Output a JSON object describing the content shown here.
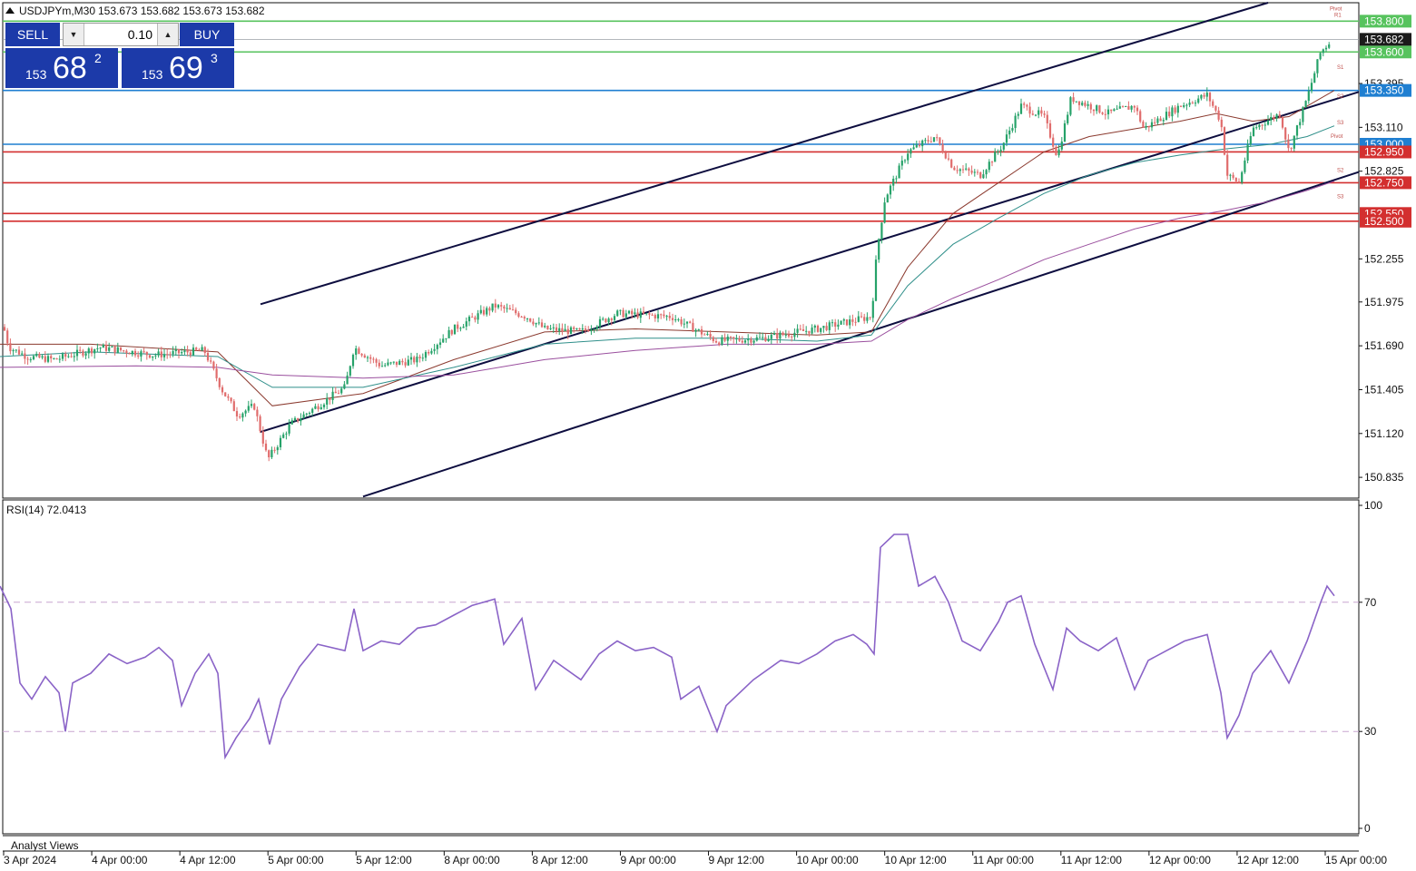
{
  "header": {
    "symbol_label": "USDJPYm,M30",
    "ohlc": "153.673 153.682 153.673 153.682"
  },
  "trade_panel": {
    "sell_label": "SELL",
    "buy_label": "BUY",
    "volume": "0.10",
    "bid": {
      "small": "153",
      "big": "68",
      "sup": "2"
    },
    "ask": {
      "small": "153",
      "big": "69",
      "sup": "3"
    }
  },
  "colors": {
    "bull": "#26a269",
    "bear": "#e06c6c",
    "support_line": "#d32f2f",
    "resistance_line": "#1f7fd1",
    "target_line": "#57c35e",
    "channel": "#0d0d3f",
    "rsi_line": "#8a63c7",
    "ma_brown": "#8b3a2f",
    "ma_teal": "#2f8f8a",
    "ma_purple": "#9a4f9e"
  },
  "chart_data": [
    {
      "type": "candlestick",
      "title": "USDJPYm,M30",
      "ylim": [
        150.7,
        153.92
      ],
      "price_ticks": [
        "153.395",
        "153.110",
        "152.825",
        "152.255",
        "151.975",
        "151.690",
        "151.405",
        "151.120",
        "150.835"
      ],
      "x_ticks": [
        "3 Apr 2024",
        "4 Apr 00:00",
        "4 Apr 12:00",
        "5 Apr 00:00",
        "5 Apr 12:00",
        "8 Apr 00:00",
        "8 Apr 12:00",
        "9 Apr 00:00",
        "9 Apr 12:00",
        "10 Apr 00:00",
        "10 Apr 12:00",
        "11 Apr 00:00",
        "11 Apr 12:00",
        "12 Apr 00:00",
        "12 Apr 12:00",
        "15 Apr 00:00"
      ],
      "price_path_anchors": [
        [
          0,
          151.9
        ],
        [
          10,
          151.68
        ],
        [
          30,
          151.62
        ],
        [
          60,
          151.6
        ],
        [
          110,
          151.68
        ],
        [
          170,
          151.63
        ],
        [
          225,
          151.66
        ],
        [
          245,
          151.4
        ],
        [
          262,
          151.24
        ],
        [
          280,
          151.3
        ],
        [
          295,
          150.95
        ],
        [
          320,
          151.18
        ],
        [
          345,
          151.28
        ],
        [
          380,
          151.42
        ],
        [
          390,
          151.68
        ],
        [
          420,
          151.56
        ],
        [
          460,
          151.6
        ],
        [
          500,
          151.8
        ],
        [
          545,
          151.95
        ],
        [
          580,
          151.88
        ],
        [
          600,
          151.8
        ],
        [
          640,
          151.78
        ],
        [
          680,
          151.9
        ],
        [
          740,
          151.88
        ],
        [
          790,
          151.72
        ],
        [
          840,
          151.74
        ],
        [
          900,
          151.8
        ],
        [
          960,
          151.88
        ],
        [
          966,
          152.3
        ],
        [
          975,
          152.65
        ],
        [
          1000,
          152.95
        ],
        [
          1030,
          153.05
        ],
        [
          1050,
          152.85
        ],
        [
          1080,
          152.8
        ],
        [
          1105,
          153
        ],
        [
          1125,
          153.25
        ],
        [
          1150,
          153.18
        ],
        [
          1165,
          152.92
        ],
        [
          1180,
          153.3
        ],
        [
          1220,
          153.2
        ],
        [
          1250,
          153.25
        ],
        [
          1260,
          153.1
        ],
        [
          1300,
          153.25
        ],
        [
          1330,
          153.32
        ],
        [
          1345,
          153.15
        ],
        [
          1352,
          152.8
        ],
        [
          1365,
          152.75
        ],
        [
          1380,
          153.1
        ],
        [
          1410,
          153.2
        ],
        [
          1420,
          152.95
        ],
        [
          1440,
          153.3
        ],
        [
          1455,
          153.6
        ],
        [
          1468,
          153.682
        ]
      ],
      "series": [
        {
          "name": "MA brown",
          "values": [
            [
              0,
              151.7
            ],
            [
              100,
              151.7
            ],
            [
              240,
              151.65
            ],
            [
              300,
              151.3
            ],
            [
              400,
              151.38
            ],
            [
              500,
              151.6
            ],
            [
              600,
              151.78
            ],
            [
              700,
              151.8
            ],
            [
              800,
              151.78
            ],
            [
              900,
              151.76
            ],
            [
              960,
              151.78
            ],
            [
              1000,
              152.2
            ],
            [
              1050,
              152.55
            ],
            [
              1100,
              152.75
            ],
            [
              1150,
              152.95
            ],
            [
              1200,
              153.05
            ],
            [
              1250,
              153.1
            ],
            [
              1300,
              153.15
            ],
            [
              1340,
              153.2
            ],
            [
              1380,
              153.15
            ],
            [
              1420,
              153.18
            ],
            [
              1470,
              153.35
            ]
          ]
        },
        {
          "name": "MA teal",
          "values": [
            [
              0,
              151.62
            ],
            [
              100,
              151.65
            ],
            [
              240,
              151.62
            ],
            [
              300,
              151.42
            ],
            [
              400,
              151.42
            ],
            [
              500,
              151.55
            ],
            [
              600,
              151.7
            ],
            [
              700,
              151.74
            ],
            [
              800,
              151.74
            ],
            [
              900,
              151.72
            ],
            [
              960,
              151.76
            ],
            [
              1000,
              152.08
            ],
            [
              1050,
              152.35
            ],
            [
              1100,
              152.52
            ],
            [
              1150,
              152.68
            ],
            [
              1200,
              152.8
            ],
            [
              1250,
              152.88
            ],
            [
              1300,
              152.93
            ],
            [
              1350,
              152.97
            ],
            [
              1400,
              153
            ],
            [
              1440,
              153.05
            ],
            [
              1470,
              153.12
            ]
          ]
        },
        {
          "name": "MA purple",
          "values": [
            [
              0,
              151.55
            ],
            [
              150,
              151.56
            ],
            [
              240,
              151.55
            ],
            [
              300,
              151.5
            ],
            [
              400,
              151.48
            ],
            [
              500,
              151.5
            ],
            [
              600,
              151.6
            ],
            [
              700,
              151.66
            ],
            [
              800,
              151.7
            ],
            [
              900,
              151.7
            ],
            [
              960,
              151.72
            ],
            [
              1000,
              151.86
            ],
            [
              1050,
              152
            ],
            [
              1100,
              152.12
            ],
            [
              1150,
              152.25
            ],
            [
              1200,
              152.35
            ],
            [
              1250,
              152.45
            ],
            [
              1300,
              152.52
            ],
            [
              1350,
              152.57
            ],
            [
              1400,
              152.63
            ],
            [
              1440,
              152.7
            ],
            [
              1470,
              152.76
            ]
          ]
        }
      ],
      "horizontal_levels": [
        {
          "price": 153.8,
          "label": "153.800",
          "kind": "target"
        },
        {
          "price": 153.6,
          "label": "153.600",
          "kind": "target"
        },
        {
          "price": 153.35,
          "label": "153.350",
          "kind": "resistance"
        },
        {
          "price": 153,
          "label": "153.000",
          "kind": "resistance"
        },
        {
          "price": 152.95,
          "label": "152.950",
          "kind": "support"
        },
        {
          "price": 152.75,
          "label": "152.750",
          "kind": "support"
        },
        {
          "price": 152.55,
          "label": "152.550",
          "kind": "support"
        },
        {
          "price": 152.5,
          "label": "152.500",
          "kind": "support"
        }
      ],
      "current_price": {
        "price": 153.682,
        "label": "153.682"
      },
      "channel_lines": [
        {
          "from": [
            287,
            151.96
          ],
          "to": [
            1397,
            153.92
          ]
        },
        {
          "from": [
            287,
            151.13
          ],
          "to": [
            1497,
            153.34
          ]
        },
        {
          "from": [
            400,
            150.71
          ],
          "to": [
            1497,
            152.82
          ]
        }
      ],
      "pivot_marks": [
        {
          "x": 1465,
          "price": 153.87,
          "text": "Pivot"
        },
        {
          "x": 1470,
          "price": 153.83,
          "text": "R1"
        },
        {
          "x": 1473,
          "price": 153.49,
          "text": "S1"
        },
        {
          "x": 1473,
          "price": 153.3,
          "text": "S2"
        },
        {
          "x": 1473,
          "price": 153.13,
          "text": "S3"
        },
        {
          "x": 1466,
          "price": 153.04,
          "text": "Pivot"
        },
        {
          "x": 1473,
          "price": 152.82,
          "text": "S2"
        },
        {
          "x": 1473,
          "price": 152.65,
          "text": "S3"
        }
      ]
    },
    {
      "type": "line",
      "title": "RSI(14) 72.0413",
      "ylim": [
        0,
        100
      ],
      "y_ticks": [
        "100",
        "70",
        "30",
        "0"
      ],
      "reference_levels": [
        70,
        30
      ],
      "series": [
        {
          "name": "RSI(14)",
          "values": [
            [
              0,
              75
            ],
            [
              12,
              68
            ],
            [
              22,
              45
            ],
            [
              35,
              40
            ],
            [
              50,
              47
            ],
            [
              65,
              42
            ],
            [
              72,
              30
            ],
            [
              80,
              45
            ],
            [
              100,
              48
            ],
            [
              120,
              54
            ],
            [
              140,
              51
            ],
            [
              160,
              53
            ],
            [
              175,
              56
            ],
            [
              190,
              52
            ],
            [
              200,
              38
            ],
            [
              215,
              48
            ],
            [
              230,
              54
            ],
            [
              240,
              48
            ],
            [
              248,
              22
            ],
            [
              260,
              28
            ],
            [
              275,
              34
            ],
            [
              285,
              40
            ],
            [
              297,
              26
            ],
            [
              310,
              40
            ],
            [
              330,
              50
            ],
            [
              350,
              57
            ],
            [
              380,
              55
            ],
            [
              390,
              68
            ],
            [
              400,
              55
            ],
            [
              420,
              58
            ],
            [
              440,
              57
            ],
            [
              460,
              62
            ],
            [
              480,
              63
            ],
            [
              500,
              66
            ],
            [
              520,
              69
            ],
            [
              545,
              71
            ],
            [
              555,
              57
            ],
            [
              575,
              65
            ],
            [
              590,
              43
            ],
            [
              610,
              52
            ],
            [
              640,
              46
            ],
            [
              660,
              54
            ],
            [
              680,
              58
            ],
            [
              700,
              55
            ],
            [
              720,
              56
            ],
            [
              740,
              53
            ],
            [
              750,
              40
            ],
            [
              770,
              44
            ],
            [
              790,
              30
            ],
            [
              800,
              38
            ],
            [
              830,
              46
            ],
            [
              860,
              52
            ],
            [
              880,
              51
            ],
            [
              900,
              54
            ],
            [
              920,
              58
            ],
            [
              940,
              60
            ],
            [
              955,
              57
            ],
            [
              963,
              54
            ],
            [
              970,
              87
            ],
            [
              985,
              91
            ],
            [
              1000,
              91
            ],
            [
              1012,
              75
            ],
            [
              1030,
              78
            ],
            [
              1045,
              70
            ],
            [
              1060,
              58
            ],
            [
              1080,
              55
            ],
            [
              1100,
              64
            ],
            [
              1110,
              70
            ],
            [
              1125,
              72
            ],
            [
              1140,
              57
            ],
            [
              1160,
              43
            ],
            [
              1175,
              62
            ],
            [
              1190,
              58
            ],
            [
              1210,
              55
            ],
            [
              1230,
              59
            ],
            [
              1250,
              43
            ],
            [
              1265,
              52
            ],
            [
              1285,
              55
            ],
            [
              1305,
              58
            ],
            [
              1330,
              60
            ],
            [
              1345,
              42
            ],
            [
              1352,
              28
            ],
            [
              1365,
              35
            ],
            [
              1380,
              48
            ],
            [
              1400,
              55
            ],
            [
              1420,
              45
            ],
            [
              1440,
              58
            ],
            [
              1455,
              70
            ],
            [
              1462,
              75
            ],
            [
              1470,
              72
            ]
          ]
        }
      ]
    }
  ],
  "bottom_label": "Analyst Views"
}
